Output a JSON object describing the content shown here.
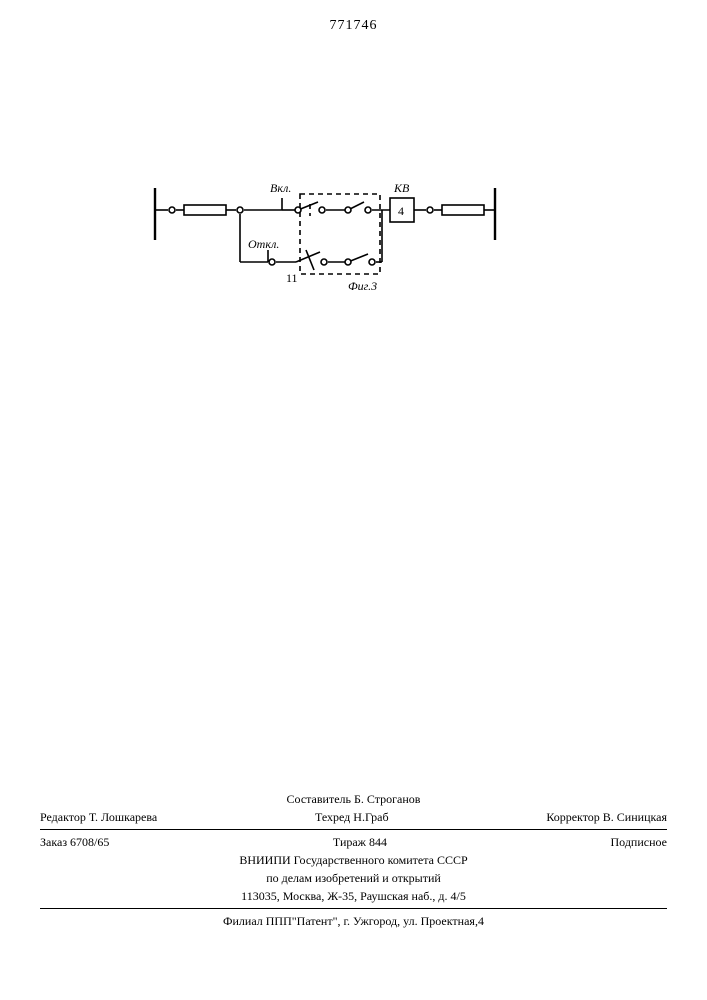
{
  "docNumber": "771746",
  "diagram": {
    "labels": {
      "vkl": "Вкл.",
      "otkl": "Откл.",
      "kv": "КВ",
      "blockNum": "4",
      "leftNum": "11",
      "figCaption": "Фиг.3"
    },
    "style": {
      "stroke": "#000000",
      "strokeWidth": 1.6,
      "dash": "5,4",
      "nodeRadius": 3,
      "nodeFill": "#ffffff",
      "font": "italic 12px Times New Roman"
    }
  },
  "footer": {
    "row1_center": "Составитель Б. Строганов",
    "row2_left": "Редактор Т. Лошкарева",
    "row2_center": "Техред Н.Граб",
    "row2_right": "Корректор В. Синицкая",
    "row3_left": "Заказ 6708/65",
    "row3_center": "Тираж 844",
    "row3_right": "Подписное",
    "org1": "ВНИИПИ Государственного комитета СССР",
    "org2": "по делам изобретений и открытий",
    "addr": "113035, Москва, Ж-35, Раушская наб., д. 4/5",
    "branch": "Филиал ППП\"Патент\", г. Ужгород, ул. Проектная,4"
  }
}
